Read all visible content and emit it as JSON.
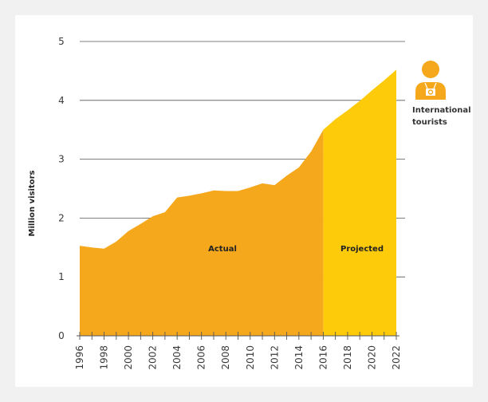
{
  "chart_data": {
    "type": "area",
    "ylabel": "Million visitors",
    "xlabel": "",
    "ylim": [
      0,
      5
    ],
    "yticks": [
      "0",
      "1",
      "2",
      "3",
      "4",
      "5"
    ],
    "x": [
      1996,
      1997,
      1998,
      1999,
      2000,
      2001,
      2002,
      2003,
      2004,
      2005,
      2006,
      2007,
      2008,
      2009,
      2010,
      2011,
      2012,
      2013,
      2014,
      2015,
      2016,
      2017,
      2018,
      2019,
      2020,
      2021,
      2022
    ],
    "xticks": [
      "1996",
      "1998",
      "2000",
      "2002",
      "2004",
      "2006",
      "2008",
      "2010",
      "2012",
      "2014",
      "2016",
      "2018",
      "2020",
      "2022"
    ],
    "grid": true,
    "series": [
      {
        "name": "Actual",
        "color": "#f6a81c",
        "x": [
          1996,
          1997,
          1998,
          1999,
          2000,
          2001,
          2002,
          2003,
          2004,
          2005,
          2006,
          2007,
          2008,
          2009,
          2010,
          2011,
          2012,
          2013,
          2014,
          2015,
          2016
        ],
        "values": [
          1.53,
          1.5,
          1.48,
          1.6,
          1.78,
          1.9,
          2.03,
          2.1,
          2.35,
          2.38,
          2.42,
          2.47,
          2.46,
          2.46,
          2.52,
          2.59,
          2.56,
          2.72,
          2.86,
          3.13,
          3.5
        ]
      },
      {
        "name": "Projected",
        "color": "#fecb0a",
        "x": [
          2016,
          2017,
          2018,
          2019,
          2020,
          2021,
          2022
        ],
        "values": [
          3.5,
          3.68,
          3.83,
          3.99,
          4.17,
          4.34,
          4.52
        ]
      }
    ],
    "legend": {
      "icon": "tourist-with-camera-icon",
      "icon_color": "#f6a81c",
      "lines": [
        "International",
        "tourists"
      ]
    }
  }
}
